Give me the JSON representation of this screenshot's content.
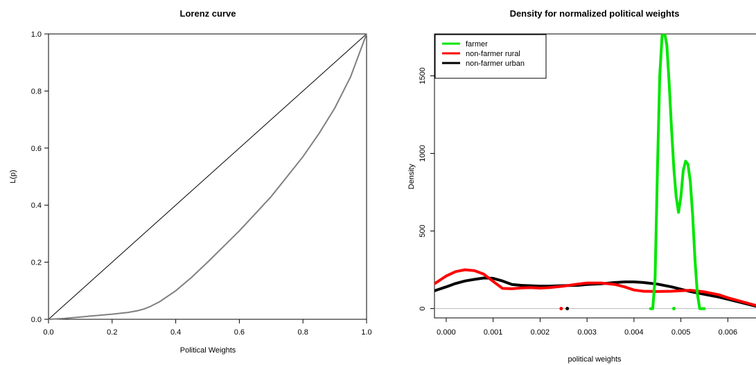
{
  "chart_data": [
    {
      "type": "line",
      "title": "Lorenz curve",
      "xlabel": "Political Weights",
      "ylabel": "L(p)",
      "xlim": [
        0,
        1
      ],
      "ylim": [
        0,
        1
      ],
      "x_ticks": [
        "0.0",
        "0.2",
        "0.4",
        "0.6",
        "0.8",
        "1.0"
      ],
      "y_ticks": [
        "0.0",
        "0.2",
        "0.4",
        "0.6",
        "0.8",
        "1.0"
      ],
      "grid": false,
      "series": [
        {
          "color": "#000000",
          "x": [
            0,
            1
          ],
          "y": [
            0,
            1
          ]
        },
        {
          "color": "#7f7f7f",
          "x": [
            0,
            0.05,
            0.1,
            0.15,
            0.2,
            0.25,
            0.28,
            0.3,
            0.32,
            0.35,
            0.4,
            0.45,
            0.5,
            0.55,
            0.6,
            0.65,
            0.7,
            0.75,
            0.8,
            0.85,
            0.9,
            0.95,
            1.0
          ],
          "y": [
            0,
            0.003,
            0.008,
            0.013,
            0.018,
            0.024,
            0.03,
            0.036,
            0.045,
            0.062,
            0.1,
            0.147,
            0.2,
            0.255,
            0.31,
            0.37,
            0.43,
            0.5,
            0.57,
            0.65,
            0.74,
            0.85,
            1.0
          ]
        }
      ]
    },
    {
      "type": "line",
      "title": "Density for normalized political weights",
      "xlabel": "political weights",
      "ylabel": "Density",
      "xlim": [
        -0.00025,
        0.0066
      ],
      "ylim": [
        -60,
        1770
      ],
      "x_ticks": [
        "0.000",
        "0.001",
        "0.002",
        "0.003",
        "0.004",
        "0.005",
        "0.006"
      ],
      "x_tick_values": [
        0,
        0.001,
        0.002,
        0.003,
        0.004,
        0.005,
        0.006
      ],
      "y_ticks": [
        "0",
        "500",
        "1000",
        "1500"
      ],
      "y_tick_values": [
        0,
        500,
        1000,
        1500
      ],
      "grid": false,
      "legend_position": "top-left",
      "series": [
        {
          "name": "farmer",
          "color": "#00e600",
          "x": [
            0.00435,
            0.0044,
            0.00445,
            0.0045,
            0.00455,
            0.0046,
            0.00465,
            0.0047,
            0.00475,
            0.0048,
            0.00485,
            0.0049,
            0.00495,
            0.005,
            0.00505,
            0.0051,
            0.00515,
            0.0052,
            0.00525,
            0.0053,
            0.00535,
            0.0054,
            0.00545,
            0.0055
          ],
          "y": [
            0,
            0,
            200,
            900,
            1500,
            1760,
            1780,
            1700,
            1450,
            1160,
            900,
            720,
            620,
            720,
            890,
            950,
            930,
            820,
            600,
            320,
            100,
            0,
            0,
            0
          ]
        },
        {
          "name": "non-farmer rural",
          "color": "#ff0000",
          "x": [
            -0.00025,
            0,
            0.0002,
            0.0004,
            0.0006,
            0.0008,
            0.001,
            0.0012,
            0.0014,
            0.0016,
            0.0018,
            0.002,
            0.0022,
            0.0025,
            0.0028,
            0.003,
            0.0033,
            0.0036,
            0.0038,
            0.004,
            0.0042,
            0.0045,
            0.0048,
            0.005,
            0.0052,
            0.0055,
            0.0058,
            0.006,
            0.0063,
            0.0066
          ],
          "y": [
            160,
            210,
            238,
            250,
            245,
            222,
            175,
            130,
            128,
            133,
            135,
            132,
            135,
            145,
            158,
            165,
            165,
            155,
            140,
            120,
            112,
            110,
            112,
            115,
            118,
            108,
            90,
            70,
            45,
            20
          ]
        },
        {
          "name": "non-farmer urban",
          "color": "#000000",
          "x": [
            -0.00025,
            0,
            0.0002,
            0.0004,
            0.0006,
            0.0008,
            0.001,
            0.0012,
            0.0014,
            0.0016,
            0.0018,
            0.002,
            0.0022,
            0.0025,
            0.0028,
            0.003,
            0.0033,
            0.0036,
            0.0038,
            0.004,
            0.0042,
            0.0045,
            0.0048,
            0.005,
            0.0052,
            0.0055,
            0.0058,
            0.006,
            0.0063,
            0.0066
          ],
          "y": [
            115,
            140,
            162,
            178,
            188,
            197,
            195,
            178,
            155,
            150,
            147,
            145,
            145,
            148,
            150,
            155,
            160,
            168,
            172,
            172,
            168,
            158,
            140,
            125,
            110,
            92,
            75,
            60,
            38,
            15
          ]
        }
      ],
      "rug_points": [
        {
          "x": 0.00245,
          "color": "#ff0000"
        },
        {
          "x": 0.00258,
          "color": "#000000"
        },
        {
          "x": 0.00485,
          "color": "#00e600"
        }
      ]
    }
  ]
}
